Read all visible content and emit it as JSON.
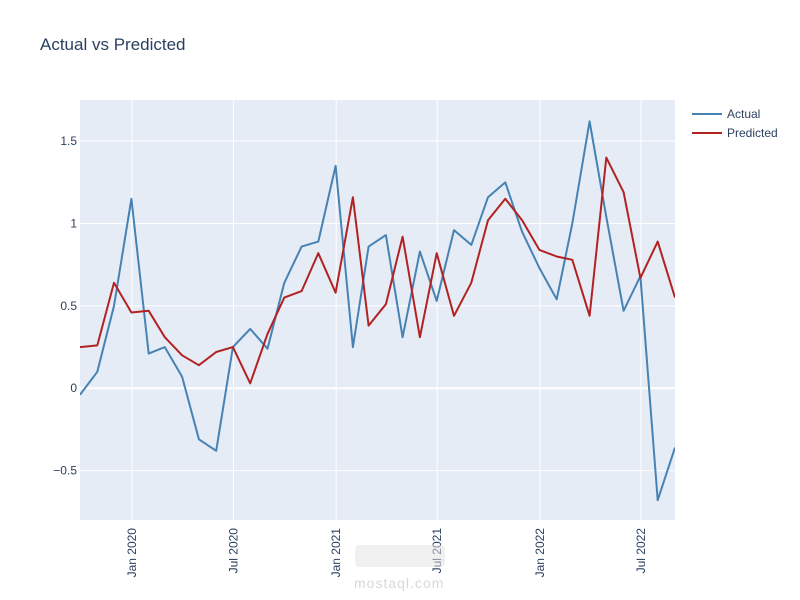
{
  "chart_data": {
    "type": "line",
    "title": "Actual vs Predicted",
    "xlabel": "",
    "ylabel": "",
    "x": [
      "2019-09-30",
      "2019-10-31",
      "2019-11-30",
      "2019-12-31",
      "2020-01-31",
      "2020-02-29",
      "2020-03-31",
      "2020-04-30",
      "2020-05-31",
      "2020-06-30",
      "2020-07-31",
      "2020-08-31",
      "2020-09-30",
      "2020-10-31",
      "2020-11-30",
      "2020-12-31",
      "2021-01-31",
      "2021-02-28",
      "2021-03-31",
      "2021-04-30",
      "2021-05-31",
      "2021-06-30",
      "2021-07-31",
      "2021-08-31",
      "2021-09-30",
      "2021-10-31",
      "2021-11-30",
      "2021-12-31",
      "2022-01-31",
      "2022-02-28",
      "2022-03-31",
      "2022-04-30",
      "2022-05-31",
      "2022-06-30",
      "2022-07-31",
      "2022-08-31"
    ],
    "series": [
      {
        "name": "Actual",
        "color": "#4682b4",
        "values": [
          -0.04,
          0.1,
          0.5,
          1.15,
          0.21,
          0.25,
          0.07,
          -0.31,
          -0.38,
          0.25,
          0.36,
          0.24,
          0.64,
          0.86,
          0.89,
          1.35,
          0.25,
          0.86,
          0.93,
          0.31,
          0.83,
          0.53,
          0.96,
          0.87,
          1.16,
          1.25,
          0.95,
          0.73,
          0.54,
          1.0,
          1.62,
          1.04,
          0.47,
          0.68,
          -0.68,
          -0.36
        ]
      },
      {
        "name": "Predicted",
        "color": "#b22222",
        "values": [
          0.25,
          0.26,
          0.64,
          0.46,
          0.47,
          0.31,
          0.2,
          0.14,
          0.22,
          0.25,
          0.03,
          0.33,
          0.55,
          0.59,
          0.82,
          0.58,
          1.16,
          0.38,
          0.51,
          0.92,
          0.31,
          0.82,
          0.44,
          0.64,
          1.02,
          1.15,
          1.02,
          0.84,
          0.8,
          0.78,
          0.44,
          1.4,
          1.19,
          0.67,
          0.89,
          0.55
        ]
      }
    ],
    "ylim": [
      -0.8,
      1.75
    ],
    "xlim": [
      "2019-09-30",
      "2022-08-31"
    ],
    "y_ticks": [
      -0.5,
      0,
      0.5,
      1,
      1.5
    ],
    "y_tick_labels": [
      "−0.5",
      "0",
      "0.5",
      "1",
      "1.5"
    ],
    "x_ticks": [
      "2020-01-01",
      "2020-07-01",
      "2021-01-01",
      "2021-07-01",
      "2022-01-01",
      "2022-07-01"
    ],
    "x_tick_labels": [
      "Jan 2020",
      "Jul 2020",
      "Jan 2021",
      "Jul 2021",
      "Jan 2022",
      "Jul 2022"
    ],
    "grid": true,
    "legend": "top-right",
    "colors": {
      "plot_bg": "#e5ecf6",
      "grid": "#ffffff",
      "text": "#2a3f5f"
    }
  },
  "watermark": {
    "text": "mostaql.com"
  }
}
